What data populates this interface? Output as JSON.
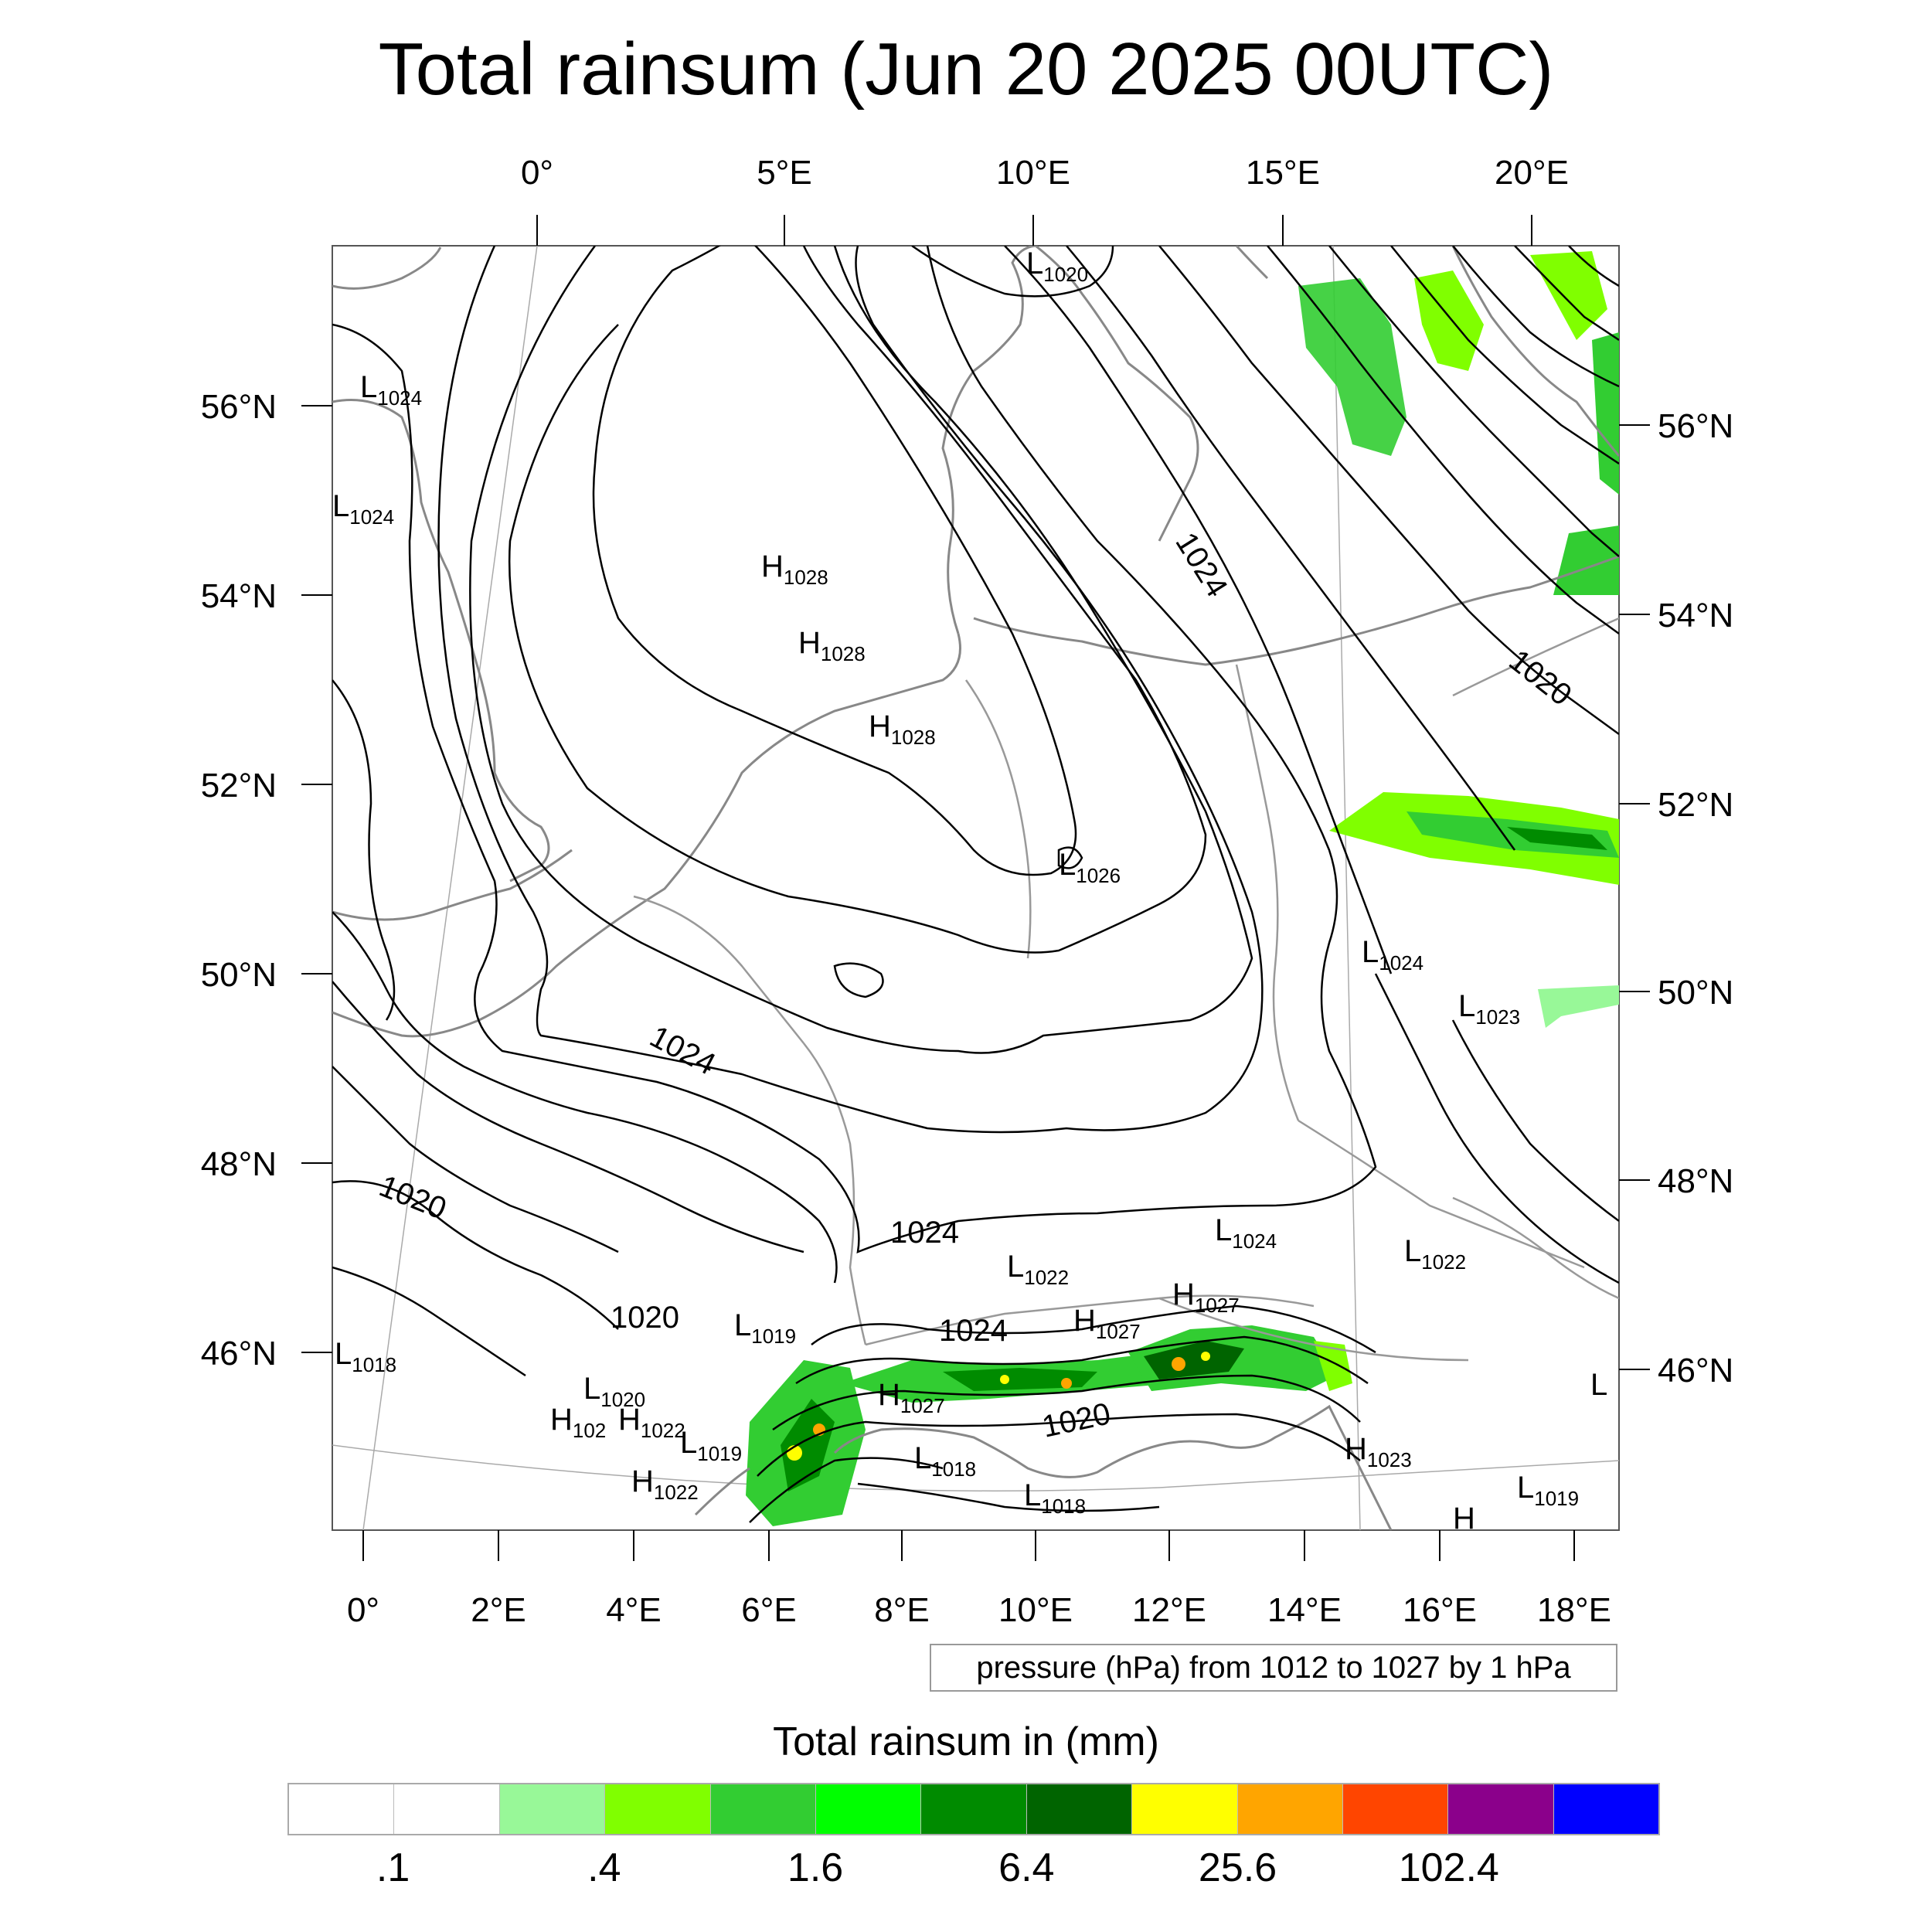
{
  "title": "Total rainsum (Jun 20 2025 00UTC)",
  "axes": {
    "top_lon_labels": [
      "0°",
      "5°E",
      "10°E",
      "15°E",
      "20°E"
    ],
    "bottom_lon_labels": [
      "0°",
      "2°E",
      "4°E",
      "6°E",
      "8°E",
      "10°E",
      "12°E",
      "14°E",
      "16°E",
      "18°E"
    ],
    "left_lat_labels": [
      "56°N",
      "54°N",
      "52°N",
      "50°N",
      "48°N",
      "46°N"
    ],
    "right_lat_labels": [
      "56°N",
      "54°N",
      "52°N",
      "50°N",
      "48°N",
      "46°N"
    ]
  },
  "pressure_labels": [
    {
      "letter": "L",
      "value": "1020"
    },
    {
      "letter": "L",
      "value": "1024"
    },
    {
      "letter": "L",
      "value": "1024"
    },
    {
      "letter": "H",
      "value": "1028"
    },
    {
      "letter": "H",
      "value": "1028"
    },
    {
      "letter": "H",
      "value": "1028"
    },
    {
      "letter": "L",
      "value": "1026"
    },
    {
      "letter": "L",
      "value": "1024"
    },
    {
      "letter": "L",
      "value": "1023"
    },
    {
      "letter": "L",
      "value": "1024"
    },
    {
      "letter": "L",
      "value": "1022"
    },
    {
      "letter": "L",
      "value": "1022"
    },
    {
      "letter": "H",
      "value": "1027"
    },
    {
      "letter": "H",
      "value": "1027"
    },
    {
      "letter": "L",
      "value": "1019"
    },
    {
      "letter": "L",
      "value": "1018"
    },
    {
      "letter": "L",
      "value": "1020"
    },
    {
      "letter": "H",
      "value": "102"
    },
    {
      "letter": "H",
      "value": "1022"
    },
    {
      "letter": "L",
      "value": "1019"
    },
    {
      "letter": "H",
      "value": "1022"
    },
    {
      "letter": "H",
      "value": "1027"
    },
    {
      "letter": "L",
      "value": "1018"
    },
    {
      "letter": "L",
      "value": "1018"
    },
    {
      "letter": "H",
      "value": "1023"
    },
    {
      "letter": "L",
      "value": "1019"
    },
    {
      "letter": "L",
      "value": ""
    },
    {
      "letter": "H",
      "value": ""
    }
  ],
  "contour_labels": [
    "1024",
    "1020",
    "1024",
    "1020",
    "1024",
    "1020",
    "1024",
    "1020"
  ],
  "info_box": "pressure (hPa) from 1012 to 1027 by 1 hPa",
  "colorbar": {
    "title": "Total rainsum in (mm)",
    "colors": [
      "#ffffff",
      "#ffffff",
      "#98f898",
      "#80ff00",
      "#32cd32",
      "#00ff00",
      "#008b00",
      "#006400",
      "#ffff00",
      "#ffa500",
      "#ff4500",
      "#8b008b",
      "#0000ff"
    ],
    "tick_labels": [
      ".1",
      ".4",
      "1.6",
      "6.4",
      "25.6",
      "102.4"
    ]
  }
}
